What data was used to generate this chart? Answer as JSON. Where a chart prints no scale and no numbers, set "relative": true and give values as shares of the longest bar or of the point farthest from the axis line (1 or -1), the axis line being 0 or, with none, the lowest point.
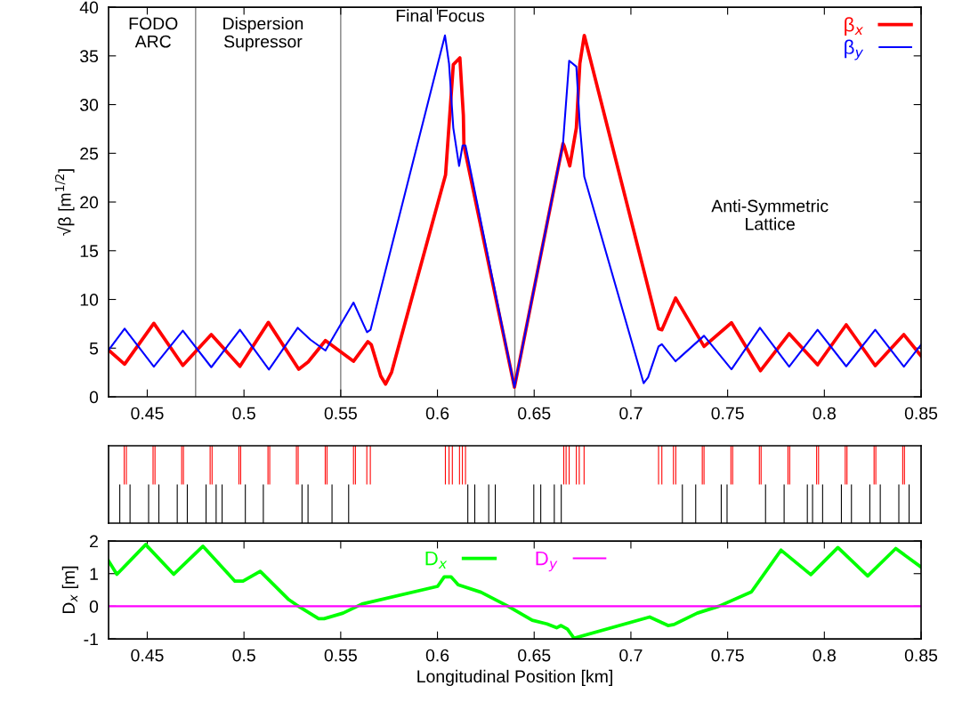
{
  "chart_data": [
    {
      "type": "line",
      "ylabel": "√β [m$^{1/2}$]",
      "xlim": [
        0.43,
        0.85
      ],
      "ylim": [
        0,
        40
      ],
      "xticks": [
        0.45,
        0.5,
        0.55,
        0.6,
        0.65,
        0.7,
        0.75,
        0.8,
        0.85
      ],
      "yticks": [
        0,
        5,
        10,
        15,
        20,
        25,
        30,
        35,
        40
      ],
      "legend": "top right",
      "line_style": "solid",
      "marker": "none",
      "annotations": [
        "FODO\nARC",
        "Dispersion\nSupressor",
        "Final Focus",
        "Anti-Symmetric\nLattice"
      ],
      "ref_lines": [
        {
          "axis": "x",
          "value": 0.475,
          "color": "#808080"
        },
        {
          "axis": "x",
          "value": 0.55,
          "color": "#808080"
        },
        {
          "axis": "x",
          "value": 0.64,
          "color": "#808080"
        }
      ],
      "series": [
        {
          "name": "β$_{x}$",
          "color": "#ff0000",
          "x": [
            0.43,
            0.4383,
            0.4534,
            0.4684,
            0.4831,
            0.4979,
            0.5126,
            0.5283,
            0.5332,
            0.5421,
            0.5566,
            0.564,
            0.5658,
            0.5707,
            0.5732,
            0.5763,
            0.6042,
            0.6082,
            0.6116,
            0.6134,
            0.6137,
            0.6398,
            0.6649,
            0.6655,
            0.6684,
            0.6718,
            0.6736,
            0.6759,
            0.7143,
            0.716,
            0.7231,
            0.7378,
            0.752,
            0.767,
            0.7818,
            0.7965,
            0.8113,
            0.8263,
            0.8411,
            0.85
          ],
          "values": [
            4.8,
            3.35,
            7.55,
            3.22,
            6.39,
            3.13,
            7.64,
            2.83,
            3.59,
            5.78,
            3.65,
            5.66,
            5.36,
            2.13,
            1.31,
            2.53,
            22.8,
            34.1,
            34.8,
            28.9,
            25.8,
            1.0,
            26.0,
            25.75,
            23.7,
            27.6,
            34.2,
            37.1,
            7.0,
            6.88,
            10.14,
            5.17,
            7.61,
            2.68,
            6.48,
            3.29,
            7.4,
            3.2,
            6.39,
            4.2
          ]
        },
        {
          "name": "β$_{y}$",
          "color": "#0000ff",
          "x": [
            0.43,
            0.4383,
            0.4534,
            0.4684,
            0.4831,
            0.4979,
            0.5129,
            0.5278,
            0.5343,
            0.5421,
            0.5566,
            0.5636,
            0.5654,
            0.6039,
            0.606,
            0.6082,
            0.6112,
            0.613,
            0.6145,
            0.6398,
            0.6649,
            0.6681,
            0.6718,
            0.6736,
            0.6759,
            0.7066,
            0.7089,
            0.7143,
            0.716,
            0.7231,
            0.7378,
            0.752,
            0.7667,
            0.7818,
            0.7965,
            0.8113,
            0.8263,
            0.8411,
            0.85
          ],
          "values": [
            4.8,
            7.0,
            3.1,
            6.79,
            3.04,
            6.88,
            2.8,
            7.09,
            5.87,
            4.75,
            9.68,
            6.64,
            6.88,
            37.1,
            34.2,
            27.6,
            23.7,
            25.8,
            25.8,
            1.0,
            26.0,
            34.5,
            33.9,
            27.9,
            22.6,
            1.4,
            2.0,
            5.17,
            5.4,
            3.65,
            6.27,
            2.83,
            7.09,
            3.1,
            6.88,
            3.13,
            6.88,
            3.1,
            5.36
          ]
        }
      ]
    },
    {
      "type": "bar",
      "relative": true,
      "xlim": [
        0.43,
        0.85
      ],
      "tick_labels": false,
      "series": [
        {
          "color": "#ff0000",
          "x": [
            0.4381,
            0.4392,
            0.453,
            0.454,
            0.4678,
            0.4687,
            0.4825,
            0.4835,
            0.4974,
            0.4983,
            0.5124,
            0.5133,
            0.5271,
            0.528,
            0.542,
            0.5429,
            0.5566,
            0.5576,
            0.5635,
            0.5653,
            0.6041,
            0.606,
            0.6077,
            0.6114,
            0.6129,
            0.6145,
            0.6653,
            0.6665,
            0.6681,
            0.6718,
            0.6733,
            0.6758,
            0.7143,
            0.716,
            0.722,
            0.7232,
            0.7369,
            0.7378,
            0.7517,
            0.7526,
            0.7664,
            0.7673,
            0.7812,
            0.7821,
            0.796,
            0.797,
            0.8108,
            0.8117,
            0.8257,
            0.8266,
            0.8405,
            0.8414
          ],
          "values": [
            1,
            1,
            1,
            1,
            1,
            1,
            1,
            1,
            1,
            1,
            1,
            1,
            1,
            1,
            1,
            1,
            1,
            1,
            1,
            1,
            1,
            1,
            1,
            1,
            1,
            1,
            1,
            1,
            1,
            1,
            1,
            1,
            1,
            1,
            1,
            1,
            1,
            1,
            1,
            1,
            1,
            1,
            1,
            1,
            1,
            1,
            1,
            1,
            1,
            1,
            1,
            1
          ]
        },
        {
          "color": "#000000",
          "x": [
            0.4358,
            0.4411,
            0.4507,
            0.456,
            0.4655,
            0.4707,
            0.4804,
            0.4856,
            0.4887,
            0.5007,
            0.51,
            0.53,
            0.5331,
            0.5455,
            0.5541,
            0.6157,
            0.6193,
            0.6265,
            0.6299,
            0.6498,
            0.6534,
            0.6604,
            0.664,
            0.7266,
            0.7335,
            0.7467,
            0.7497,
            0.7696,
            0.7792,
            0.7912,
            0.7939,
            0.7991,
            0.8088,
            0.814,
            0.8235,
            0.8289,
            0.8385,
            0.8438
          ],
          "values": [
            -1,
            -1,
            -1,
            -1,
            -1,
            -1,
            -1,
            -1,
            -1,
            -1,
            -1,
            -1,
            -1,
            -1,
            -1,
            -1,
            -1,
            -1,
            -1,
            -1,
            -1,
            -1,
            -1,
            -1,
            -1,
            -1,
            -1,
            -1,
            -1,
            -1,
            -1,
            -1,
            -1,
            -1,
            -1,
            -1,
            -1,
            -1
          ]
        }
      ]
    },
    {
      "type": "line",
      "xlabel": "Longitudinal Position [km]",
      "ylabel": "D$_{x}$ [m]",
      "xlim": [
        0.43,
        0.85
      ],
      "ylim": [
        -1,
        2
      ],
      "xticks": [
        0.45,
        0.5,
        0.55,
        0.6,
        0.65,
        0.7,
        0.75,
        0.8,
        0.85
      ],
      "yticks": [
        -1,
        0,
        1,
        2
      ],
      "legend": "top",
      "line_style": "solid",
      "marker": "none",
      "series": [
        {
          "name": "D$_{x}$",
          "color": "#00ff00",
          "x": [
            0.43,
            0.4343,
            0.4492,
            0.4637,
            0.4788,
            0.4953,
            0.4995,
            0.5084,
            0.5232,
            0.5274,
            0.5386,
            0.5414,
            0.5512,
            0.561,
            0.6001,
            0.6035,
            0.6071,
            0.6107,
            0.6225,
            0.6365,
            0.649,
            0.6566,
            0.6616,
            0.6639,
            0.6672,
            0.6706,
            0.7097,
            0.7192,
            0.7223,
            0.7343,
            0.7455,
            0.7623,
            0.7776,
            0.793,
            0.807,
            0.8224,
            0.8369,
            0.85
          ],
          "values": [
            1.39,
            0.98,
            1.89,
            0.98,
            1.84,
            0.77,
            0.77,
            1.07,
            0.2,
            0.03,
            -0.38,
            -0.38,
            -0.21,
            0.07,
            0.61,
            0.9,
            0.9,
            0.66,
            0.43,
            0,
            -0.43,
            -0.54,
            -0.66,
            -0.59,
            -0.7,
            -0.98,
            -0.33,
            -0.59,
            -0.56,
            -0.21,
            0,
            0.44,
            1.72,
            0.97,
            1.8,
            0.93,
            1.77,
            1.2
          ]
        },
        {
          "name": "D$_{y}$",
          "color": "#ff00ff",
          "x": [
            0.43,
            0.85
          ],
          "values": [
            0,
            0
          ]
        }
      ]
    }
  ]
}
